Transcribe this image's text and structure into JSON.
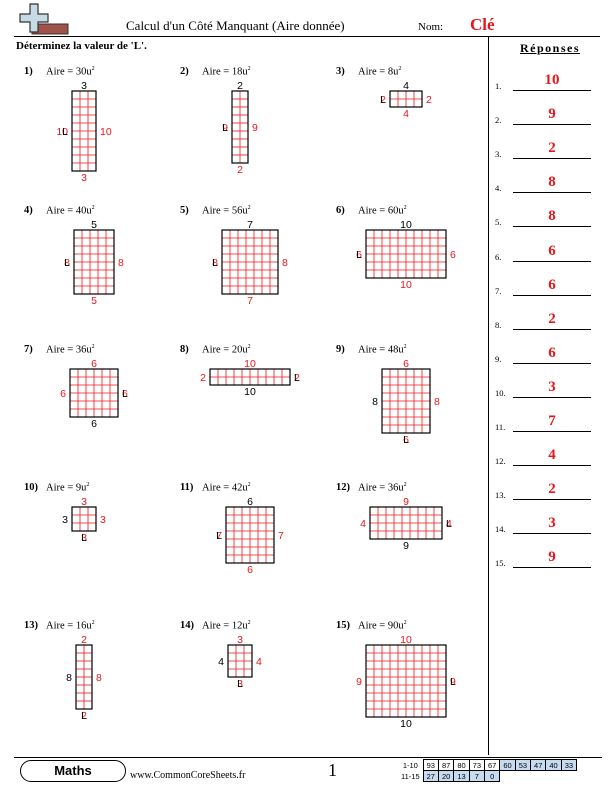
{
  "header": {
    "title": "Calcul d'un Côté Manquant (Aire donnée)",
    "name_label": "Nom:",
    "name_value": "Clé",
    "instructions": "Déterminez la valeur de 'L'."
  },
  "answers": {
    "heading": "Réponses",
    "items": [
      {
        "num": "1.",
        "val": "10"
      },
      {
        "num": "2.",
        "val": "9"
      },
      {
        "num": "3.",
        "val": "2"
      },
      {
        "num": "4.",
        "val": "8"
      },
      {
        "num": "5.",
        "val": "8"
      },
      {
        "num": "6.",
        "val": "6"
      },
      {
        "num": "7.",
        "val": "6"
      },
      {
        "num": "8.",
        "val": "2"
      },
      {
        "num": "9.",
        "val": "6"
      },
      {
        "num": "10.",
        "val": "3"
      },
      {
        "num": "11.",
        "val": "7"
      },
      {
        "num": "12.",
        "val": "4"
      },
      {
        "num": "13.",
        "val": "2"
      },
      {
        "num": "14.",
        "val": "3"
      },
      {
        "num": "15.",
        "val": "9"
      }
    ]
  },
  "problems": [
    {
      "num": "1)",
      "area": "Aire = 30u",
      "unit_exp": "2",
      "cols": 3,
      "rows": 10,
      "top": "3",
      "top_red": false,
      "bottom": "3",
      "bottom_red": true,
      "left": "10",
      "left_red": true,
      "right": "10",
      "right_red": true,
      "l_side": "left"
    },
    {
      "num": "2)",
      "area": "Aire = 18u",
      "unit_exp": "2",
      "cols": 2,
      "rows": 9,
      "top": "2",
      "top_red": false,
      "bottom": "2",
      "bottom_red": true,
      "left": "9",
      "left_red": true,
      "right": "9",
      "right_red": true,
      "l_side": "left"
    },
    {
      "num": "3)",
      "area": "Aire = 8u",
      "unit_exp": "2",
      "cols": 4,
      "rows": 2,
      "top": "4",
      "top_red": false,
      "bottom": "4",
      "bottom_red": true,
      "left": "2",
      "left_red": true,
      "right": "2",
      "right_red": true,
      "l_side": "left"
    },
    {
      "num": "4)",
      "area": "Aire = 40u",
      "unit_exp": "2",
      "cols": 5,
      "rows": 8,
      "top": "5",
      "top_red": false,
      "bottom": "5",
      "bottom_red": true,
      "left": "8",
      "left_red": true,
      "right": "8",
      "right_red": true,
      "l_side": "left"
    },
    {
      "num": "5)",
      "area": "Aire = 56u",
      "unit_exp": "2",
      "cols": 7,
      "rows": 8,
      "top": "7",
      "top_red": false,
      "bottom": "7",
      "bottom_red": true,
      "left": "8",
      "left_red": true,
      "right": "8",
      "right_red": true,
      "l_side": "left"
    },
    {
      "num": "6)",
      "area": "Aire = 60u",
      "unit_exp": "2",
      "cols": 10,
      "rows": 6,
      "top": "10",
      "top_red": false,
      "bottom": "10",
      "bottom_red": true,
      "left": "6",
      "left_red": true,
      "right": "6",
      "right_red": true,
      "l_side": "left"
    },
    {
      "num": "7)",
      "area": "Aire = 36u",
      "unit_exp": "2",
      "cols": 6,
      "rows": 6,
      "top": "6",
      "top_red": true,
      "bottom": "6",
      "bottom_red": false,
      "left": "6",
      "left_red": true,
      "right": "6",
      "right_red": true,
      "l_side": "right"
    },
    {
      "num": "8)",
      "area": "Aire = 20u",
      "unit_exp": "2",
      "cols": 10,
      "rows": 2,
      "top": "10",
      "top_red": true,
      "bottom": "10",
      "bottom_red": false,
      "left": "2",
      "left_red": true,
      "right": "2",
      "right_red": true,
      "l_side": "right"
    },
    {
      "num": "9)",
      "area": "Aire = 48u",
      "unit_exp": "2",
      "cols": 6,
      "rows": 8,
      "top": "6",
      "top_red": true,
      "bottom": "6",
      "bottom_red": true,
      "left": "8",
      "left_red": false,
      "right": "8",
      "right_red": true,
      "l_side": "bottom"
    },
    {
      "num": "10)",
      "area": "Aire = 9u",
      "unit_exp": "2",
      "cols": 3,
      "rows": 3,
      "top": "3",
      "top_red": true,
      "bottom": "3",
      "bottom_red": true,
      "left": "3",
      "left_red": false,
      "right": "3",
      "right_red": true,
      "l_side": "bottom"
    },
    {
      "num": "11)",
      "area": "Aire = 42u",
      "unit_exp": "2",
      "cols": 6,
      "rows": 7,
      "top": "6",
      "top_red": false,
      "bottom": "6",
      "bottom_red": true,
      "left": "7",
      "left_red": true,
      "right": "7",
      "right_red": true,
      "l_side": "left"
    },
    {
      "num": "12)",
      "area": "Aire = 36u",
      "unit_exp": "2",
      "cols": 9,
      "rows": 4,
      "top": "9",
      "top_red": true,
      "bottom": "9",
      "bottom_red": false,
      "left": "4",
      "left_red": true,
      "right": "4",
      "right_red": true,
      "l_side": "right"
    },
    {
      "num": "13)",
      "area": "Aire = 16u",
      "unit_exp": "2",
      "cols": 2,
      "rows": 8,
      "top": "2",
      "top_red": true,
      "bottom": "2",
      "bottom_red": true,
      "left": "8",
      "left_red": false,
      "right": "8",
      "right_red": true,
      "l_side": "bottom"
    },
    {
      "num": "14)",
      "area": "Aire = 12u",
      "unit_exp": "2",
      "cols": 3,
      "rows": 4,
      "top": "3",
      "top_red": true,
      "bottom": "3",
      "bottom_red": true,
      "left": "4",
      "left_red": false,
      "right": "4",
      "right_red": true,
      "l_side": "bottom"
    },
    {
      "num": "15)",
      "area": "Aire = 90u",
      "unit_exp": "2",
      "cols": 10,
      "rows": 9,
      "top": "10",
      "top_red": true,
      "bottom": "10",
      "bottom_red": false,
      "left": "9",
      "left_red": true,
      "right": "9",
      "right_red": true,
      "l_side": "right"
    }
  ],
  "l_label": "L",
  "footer": {
    "brand": "Maths",
    "site": "www.CommonCoreSheets.fr",
    "page": "1",
    "score_rows": [
      {
        "label": "1-10",
        "cells": [
          "93",
          "87",
          "80",
          "73",
          "67",
          "60",
          "53",
          "47",
          "40",
          "33"
        ]
      },
      {
        "label": "11-15",
        "cells": [
          "27",
          "20",
          "13",
          "7",
          "0"
        ]
      }
    ]
  },
  "colors": {
    "red": "#e8161b",
    "grid": "#e8161b"
  }
}
